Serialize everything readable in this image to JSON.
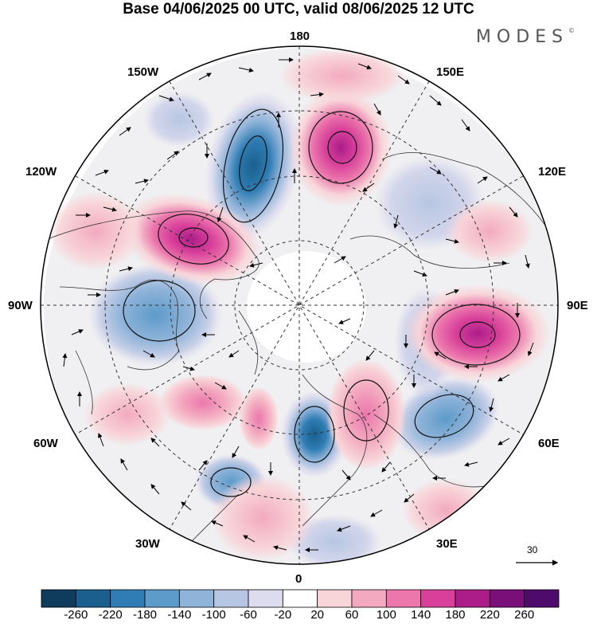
{
  "title": "Base 04/06/2025 00 UTC, valid 08/06/2025 12 UTC",
  "logo": "MODES",
  "logo_mark": "©",
  "lon_labels": {
    "n180": "180",
    "w150": "150W",
    "e150": "150E",
    "w120": "120W",
    "e120": "120E",
    "w90": "90W",
    "e90": "90E",
    "w60": "60W",
    "e60": "60E",
    "w30": "30W",
    "e30": "30E",
    "s0": "0"
  },
  "wind_reference": "30",
  "colorbar": {
    "ticks": [
      "-260",
      "-220",
      "-180",
      "-140",
      "-100",
      "-60",
      "-20",
      "20",
      "60",
      "100",
      "140",
      "180",
      "220",
      "260"
    ],
    "colors": [
      "#0f3b5c",
      "#1a5f8e",
      "#2f7db4",
      "#5d9bca",
      "#8fb3d9",
      "#b7c6e2",
      "#dcdcee",
      "#ffffff",
      "#f8d5d9",
      "#f3aac0",
      "#eb77ac",
      "#d8409a",
      "#ac1d8a",
      "#7a0f7a",
      "#4e0b6b"
    ]
  }
}
